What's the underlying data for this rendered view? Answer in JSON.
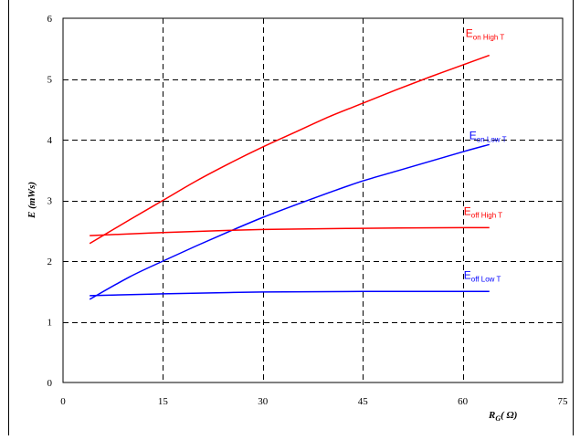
{
  "chart_data": {
    "type": "line",
    "title": "",
    "xlabel": {
      "main": "R",
      "sub": "G",
      "unit": "( Ω)"
    },
    "ylabel": "E (mWs)",
    "xlim": [
      0,
      75
    ],
    "ylim": [
      0,
      6
    ],
    "xticks": [
      0,
      15,
      30,
      45,
      60,
      75
    ],
    "yticks": [
      0,
      1,
      2,
      3,
      4,
      5,
      6
    ],
    "grid": true,
    "series": [
      {
        "name": "E on High T",
        "label": {
          "main": "E",
          "sub": "on High T"
        },
        "color": "#ff0000",
        "x": [
          4,
          10,
          15,
          20,
          25,
          30,
          35,
          40,
          45,
          50,
          55,
          60,
          64
        ],
        "y": [
          2.29,
          2.68,
          3.0,
          3.32,
          3.61,
          3.88,
          4.13,
          4.38,
          4.6,
          4.82,
          5.03,
          5.23,
          5.39
        ]
      },
      {
        "name": "E on Low T",
        "label": {
          "main": "E",
          "sub": "on Low T"
        },
        "color": "#0000ff",
        "x": [
          4,
          10,
          15,
          20,
          25,
          30,
          35,
          40,
          45,
          50,
          55,
          60,
          64
        ],
        "y": [
          1.37,
          1.74,
          2.0,
          2.25,
          2.49,
          2.72,
          2.93,
          3.13,
          3.32,
          3.48,
          3.64,
          3.8,
          3.92
        ]
      },
      {
        "name": "E off High T",
        "label": {
          "main": "E",
          "sub": "off High T"
        },
        "color": "#ff0000",
        "x": [
          4,
          15,
          30,
          45,
          60,
          64
        ],
        "y": [
          2.42,
          2.47,
          2.52,
          2.54,
          2.55,
          2.55
        ]
      },
      {
        "name": "E off Low T",
        "label": {
          "main": "E",
          "sub": "off Low T"
        },
        "color": "#0000ff",
        "x": [
          4,
          15,
          30,
          45,
          60,
          64
        ],
        "y": [
          1.43,
          1.46,
          1.49,
          1.5,
          1.5,
          1.5
        ]
      }
    ]
  }
}
